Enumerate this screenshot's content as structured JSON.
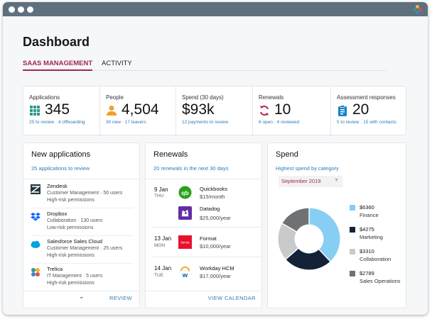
{
  "page": {
    "title": "Dashboard"
  },
  "tabs": [
    {
      "label": "SAAS MANAGEMENT"
    },
    {
      "label": "ACTIVITY"
    }
  ],
  "stats": [
    {
      "label": "Applications",
      "value": "345",
      "sub": "25 to review · 4 offboarding",
      "icon": "grid-icon"
    },
    {
      "label": "People",
      "value": "4,504",
      "sub": "30 new · 17 leavers",
      "icon": "person-icon"
    },
    {
      "label": "Spend (30 days)",
      "value": "$93k",
      "sub": "12 payments to review",
      "icon": ""
    },
    {
      "label": "Renewals",
      "value": "10",
      "sub": "6 open · 4 reviewed",
      "icon": "refresh-icon"
    },
    {
      "label": "Assessment responses",
      "value": "20",
      "sub": "5 to review · 15 with contacts",
      "icon": "clipboard-icon"
    }
  ],
  "new_apps": {
    "title": "New applications",
    "subtitle": "25 applications to review",
    "review_label": "REVIEW",
    "items": [
      {
        "name": "Zendesk",
        "meta": "Customer Management · 50 users",
        "risk": "High-risk permissions",
        "icon": "zendesk-logo"
      },
      {
        "name": "Dropbox",
        "meta": "Collaboration · 130 users",
        "risk": "Low-risk permissions",
        "icon": "dropbox-logo"
      },
      {
        "name": "Salesforce Sales Cloud",
        "meta": "Customer Management · 25 users",
        "risk": "High-risk permissions",
        "icon": "salesforce-logo"
      },
      {
        "name": "Trelica",
        "meta": "IT Management · 5 users",
        "risk": "High-risk permissions",
        "icon": "trelica-logo"
      }
    ]
  },
  "renewals": {
    "title": "Renewals",
    "subtitle": "20 renewals in the next 30 days",
    "view_label": "VIEW CALENDAR",
    "groups": [
      {
        "date": "9 Jan",
        "day": "THU",
        "items": [
          {
            "name": "Quickbooks",
            "price": "$15/month",
            "icon": "quickbooks-logo"
          },
          {
            "name": "Datadog",
            "price": "$25,000/year",
            "icon": "datadog-logo"
          }
        ]
      },
      {
        "date": "13 Jan",
        "day": "MON",
        "items": [
          {
            "name": "Format",
            "price": "$10,000/year",
            "icon": "format-logo"
          }
        ]
      },
      {
        "date": "14 Jan",
        "day": "TUE",
        "items": [
          {
            "name": "Workday HCM",
            "price": "$17,000/year",
            "icon": "workday-logo"
          }
        ]
      }
    ]
  },
  "spend": {
    "title": "Spend",
    "subtitle": "Highest spend by category",
    "period": "September 2019",
    "chart_data": {
      "type": "pie",
      "categories": [
        "Finance",
        "Marketing",
        "Collaboration",
        "Sales Operations"
      ],
      "values": [
        6360,
        4275,
        3310,
        2789
      ],
      "labels": [
        "$6360",
        "$4275",
        "$3310",
        "$2789"
      ],
      "colors": [
        "#87cef3",
        "#132238",
        "#c8cacc",
        "#707173"
      ],
      "donut": true
    }
  },
  "colors": {
    "accent": "#a0294f",
    "link": "#2b7bb9",
    "icon_blue": "#1a82c4",
    "icon_teal": "#2e9a8d",
    "icon_orange": "#f0a030",
    "icon_red": "#b3294a"
  }
}
